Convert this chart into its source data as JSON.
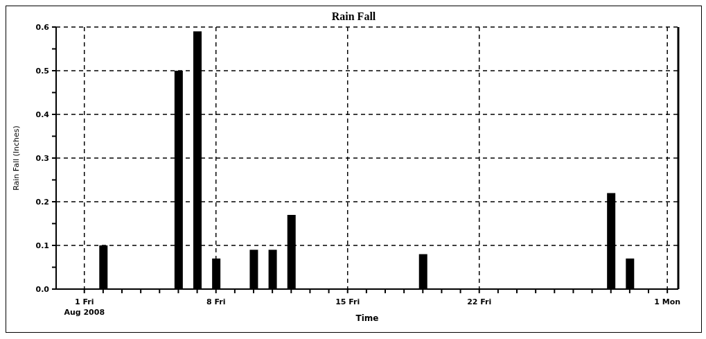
{
  "chart_data": {
    "type": "bar",
    "title": "Rain Fall",
    "xlabel": "Time",
    "ylabel": "Rain Fall (Inches)",
    "x": [
      "2008-08-02",
      "2008-08-06",
      "2008-08-07",
      "2008-08-08",
      "2008-08-10",
      "2008-08-11",
      "2008-08-12",
      "2008-08-19",
      "2008-08-29",
      "2008-08-30"
    ],
    "values": [
      0.1,
      0.5,
      0.59,
      0.07,
      0.09,
      0.09,
      0.17,
      0.08,
      0.22,
      0.07
    ],
    "color": "#000000",
    "xlim": [
      "2008-07-30T12:00",
      "2008-09-01T14:00"
    ],
    "xticks": [
      {
        "value": "2008-08-01",
        "label": "1 Fri\nAug 2008"
      },
      {
        "value": "2008-08-02",
        "label": null
      },
      {
        "value": "2008-08-03",
        "label": null
      },
      {
        "value": "2008-08-04",
        "label": null
      },
      {
        "value": "2008-08-05",
        "label": null
      },
      {
        "value": "2008-08-06",
        "label": null
      },
      {
        "value": "2008-08-07",
        "label": null
      },
      {
        "value": "2008-08-08",
        "label": "8 Fri"
      },
      {
        "value": "2008-08-09",
        "label": null
      },
      {
        "value": "2008-08-10",
        "label": null
      },
      {
        "value": "2008-08-11",
        "label": null
      },
      {
        "value": "2008-08-12",
        "label": null
      },
      {
        "value": "2008-08-13",
        "label": null
      },
      {
        "value": "2008-08-14",
        "label": null
      },
      {
        "value": "2008-08-15",
        "label": "15 Fri"
      },
      {
        "value": "2008-08-16",
        "label": null
      },
      {
        "value": "2008-08-17",
        "label": null
      },
      {
        "value": "2008-08-18",
        "label": null
      },
      {
        "value": "2008-08-19",
        "label": null
      },
      {
        "value": "2008-08-20",
        "label": null
      },
      {
        "value": "2008-08-21",
        "label": null
      },
      {
        "value": "2008-08-22",
        "label": "22 Fri"
      },
      {
        "value": "2008-08-23",
        "label": null
      },
      {
        "value": "2008-08-24",
        "label": null
      },
      {
        "value": "2008-08-25",
        "label": null
      },
      {
        "value": "2008-08-26",
        "label": null
      },
      {
        "value": "2008-08-27",
        "label": null
      },
      {
        "value": "2008-08-28",
        "label": null
      },
      {
        "value": "2008-08-29",
        "label": null
      },
      {
        "value": "2008-08-30",
        "label": null
      },
      {
        "value": "2008-08-31",
        "label": null
      },
      {
        "value": "2008-09-01",
        "label": "1 Mon"
      }
    ],
    "ylim": [
      0,
      0.6
    ],
    "yticks": [
      {
        "value": 0,
        "label": "0.0"
      },
      {
        "value": 0.05,
        "label": null
      },
      {
        "value": 0.1,
        "label": "0.1"
      },
      {
        "value": 0.15,
        "label": null
      },
      {
        "value": 0.2,
        "label": "0.2"
      },
      {
        "value": 0.25,
        "label": null
      },
      {
        "value": 0.3,
        "label": "0.3"
      },
      {
        "value": 0.35,
        "label": null
      },
      {
        "value": 0.4,
        "label": "0.4"
      },
      {
        "value": 0.45,
        "label": null
      },
      {
        "value": 0.5,
        "label": "0.5"
      },
      {
        "value": 0.55,
        "label": null
      },
      {
        "value": 0.6,
        "label": "0.6"
      }
    ],
    "grid": true
  }
}
